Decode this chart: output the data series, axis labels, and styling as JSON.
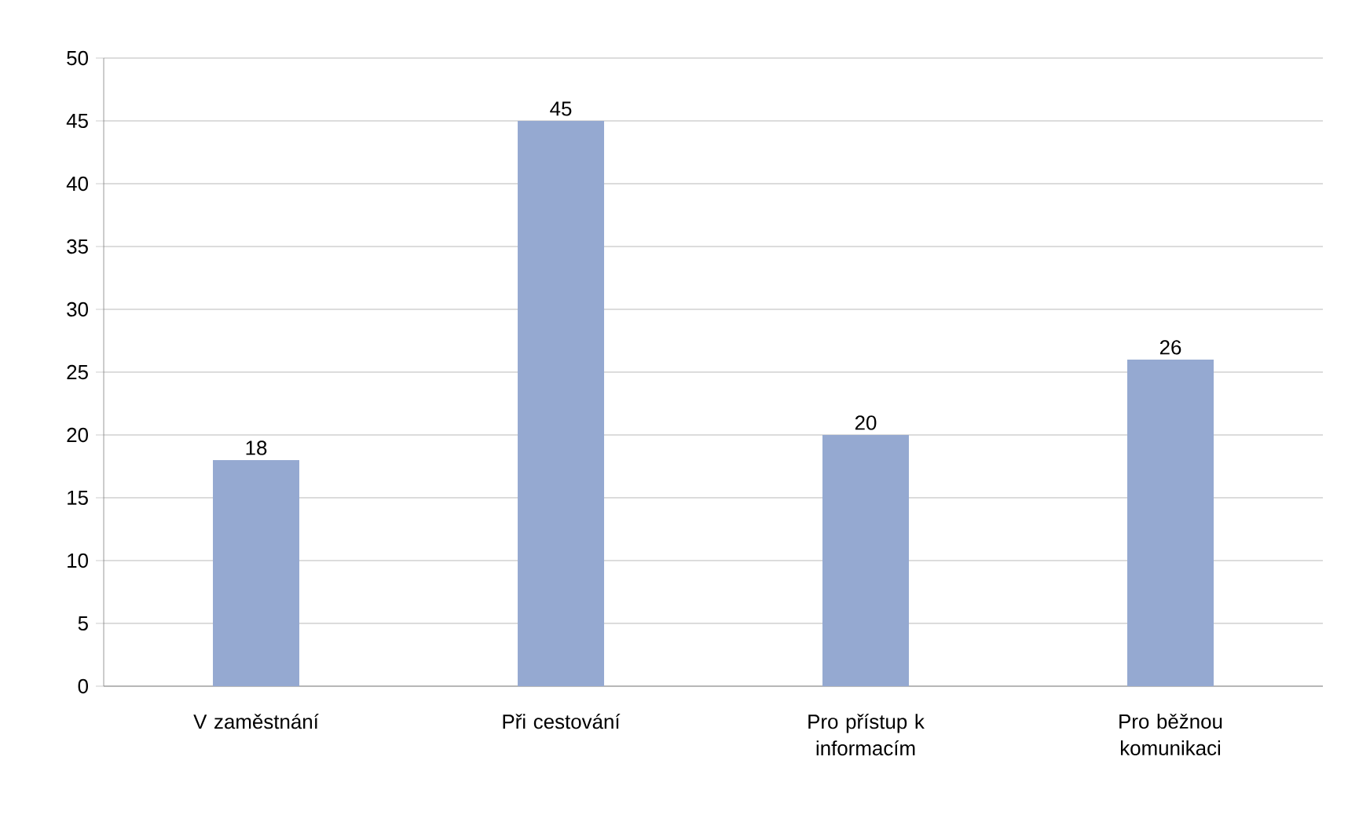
{
  "chart_data": {
    "type": "bar",
    "categories": [
      "V zaměstnání",
      "Při cestování",
      "Pro přístup k informacím",
      "Pro běžnou komunikaci"
    ],
    "values": [
      18,
      45,
      20,
      26
    ],
    "color": "#95a9d1",
    "ylim": [
      0,
      50
    ],
    "yticks": [
      0,
      5,
      10,
      15,
      20,
      25,
      30,
      35,
      40,
      45,
      50
    ],
    "grid": "y",
    "data_labels": true
  }
}
